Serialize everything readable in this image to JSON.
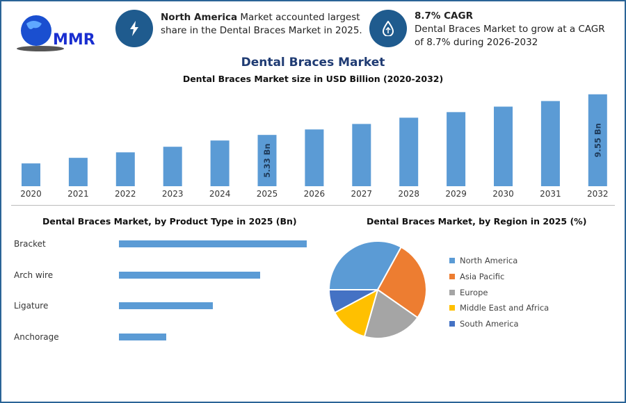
{
  "logo": {
    "text": "MMR"
  },
  "info1": {
    "icon": "lightning-icon",
    "bold": "North America",
    "text": " Market accounted largest share in the Dental Braces Market in 2025."
  },
  "info2": {
    "icon": "growth-drop-icon",
    "bold": "8.7% CAGR",
    "text": "Dental Braces Market to grow at a CAGR of 8.7% during 2026-2032"
  },
  "title": "Dental Braces Market",
  "colors": {
    "bar": "#5b9bd5",
    "title": "#1f3b73",
    "circle": "#1f5b8e"
  },
  "chart_data": [
    {
      "type": "bar",
      "title": "Dental Braces Market size in USD Billion (2020-2032)",
      "categories": [
        "2020",
        "2021",
        "2022",
        "2023",
        "2024",
        "2025",
        "2026",
        "2027",
        "2028",
        "2029",
        "2030",
        "2031",
        "2032"
      ],
      "values": [
        2.37,
        2.95,
        3.52,
        4.1,
        4.75,
        5.33,
        5.9,
        6.47,
        7.12,
        7.7,
        8.27,
        8.85,
        9.55
      ],
      "data_labels": {
        "2025": "5.33 Bn",
        "2032": "9.55 Bn"
      },
      "grid": false
    },
    {
      "type": "bar",
      "orientation": "horizontal",
      "title": "Dental Braces Market, by Product Type in 2025 (Bn)",
      "categories": [
        "Bracket",
        "Arch wire",
        "Ligature",
        "Anchorage"
      ],
      "values": [
        1.0,
        0.75,
        0.5,
        0.25
      ],
      "note_values": "relative to largest; no axis printed"
    },
    {
      "type": "pie",
      "title": "Dental Braces Market, by Region in 2025 (%)",
      "categories": [
        "North America",
        "Asia Pacific",
        "Europe",
        "Middle East and Africa",
        "South America"
      ],
      "values": [
        33,
        26.7,
        19.7,
        12.8,
        7.8
      ],
      "colors": [
        "#5b9bd5",
        "#ed7d31",
        "#a5a5a5",
        "#ffc000",
        "#4472c4"
      ],
      "legend": "right"
    }
  ]
}
